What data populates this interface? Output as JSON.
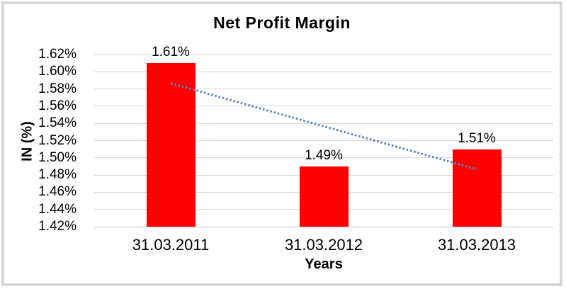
{
  "window": {
    "background": "#ffffff",
    "frame_border_color": "#d6d6d6"
  },
  "chart_data": {
    "type": "bar",
    "title": "Net Profit Margin",
    "xlabel": "Years",
    "ylabel": "IN (%)",
    "categories": [
      "31.03.2011",
      "31.03.2012",
      "31.03.2013"
    ],
    "values": [
      1.61,
      1.49,
      1.51
    ],
    "data_labels": [
      "1.61%",
      "1.49%",
      "1.51%"
    ],
    "ylim": [
      1.42,
      1.62
    ],
    "ytick_step": 0.02,
    "yticks": [
      "1.62%",
      "1.60%",
      "1.58%",
      "1.56%",
      "1.54%",
      "1.52%",
      "1.50%",
      "1.48%",
      "1.46%",
      "1.44%",
      "1.42%"
    ],
    "grid": true,
    "legend": "none",
    "bar_color": "#ff0000",
    "gridline_color": "#d9d9d9",
    "axis_line_color": "#c6c6c6",
    "text_color": "#000000",
    "trendline": {
      "type": "linear",
      "style": "dotted",
      "color": "#4e87c9",
      "start_value": 1.587,
      "end_value": 1.487
    }
  }
}
